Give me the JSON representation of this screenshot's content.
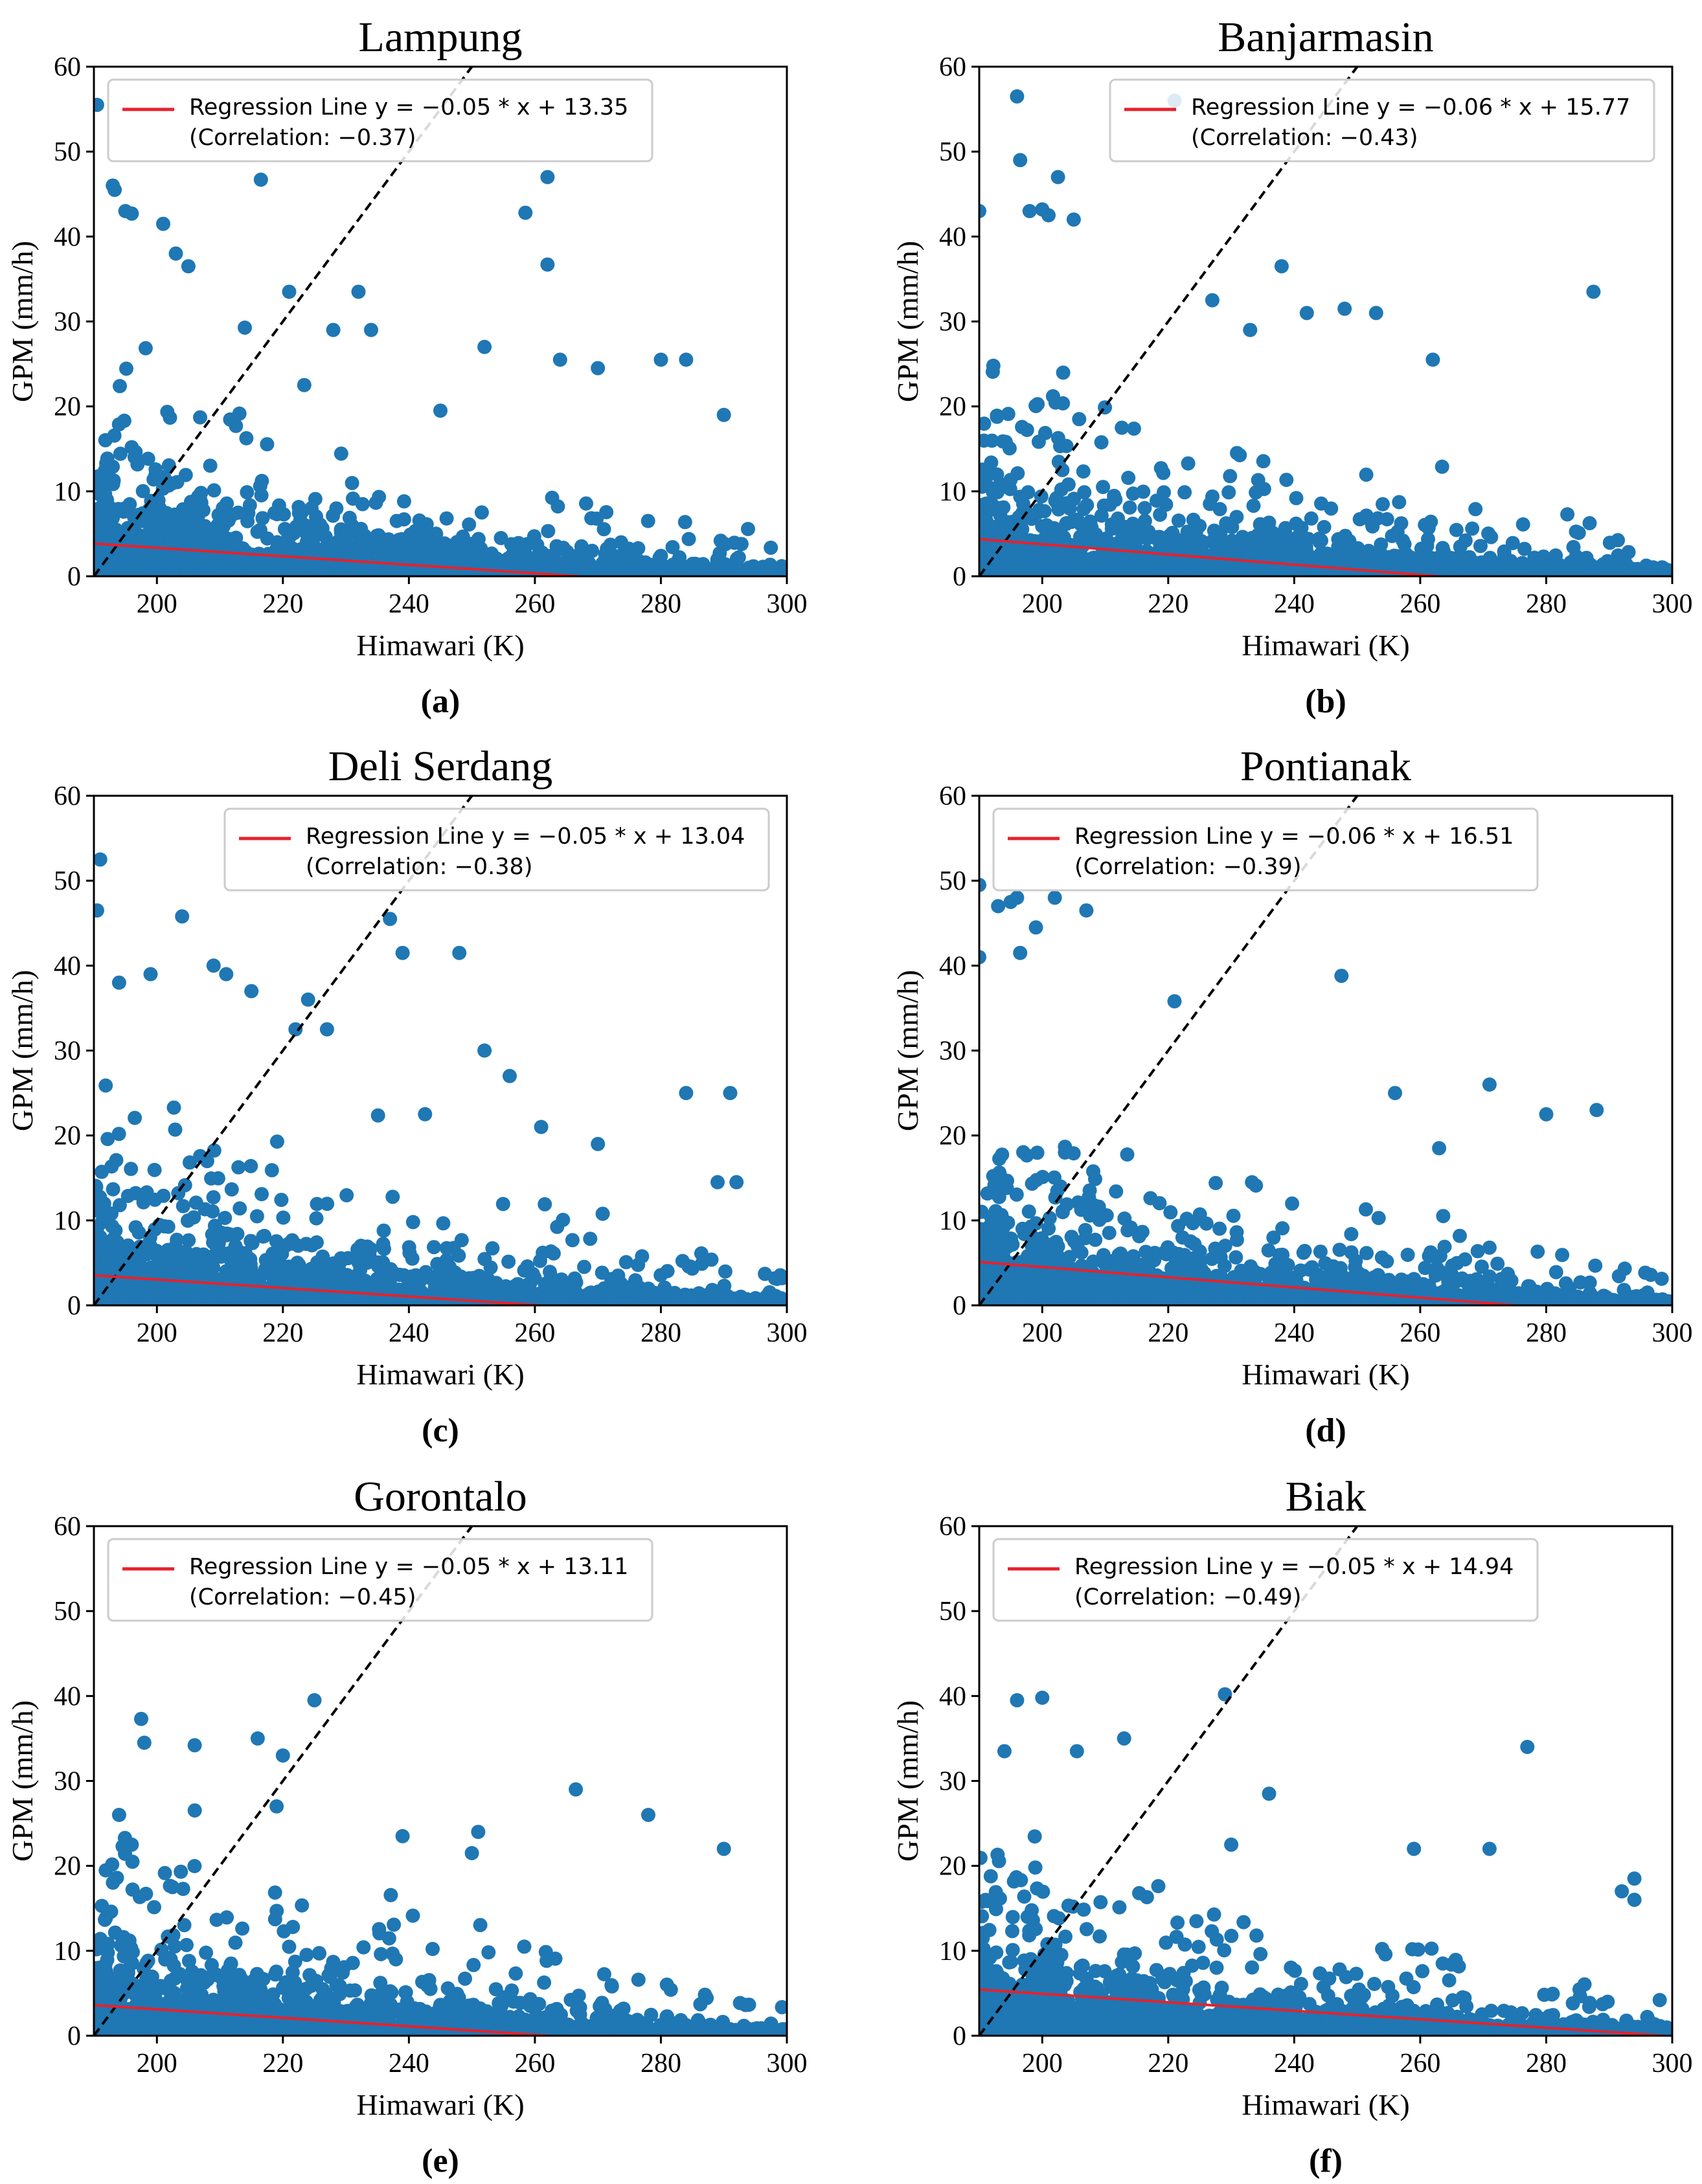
{
  "colors": {
    "points": "#1f77b4",
    "regression": "#e8212b",
    "identity": "#000000",
    "axes": "#000000"
  },
  "chart_data": [
    {
      "panel_label": "(a)",
      "type": "scatter",
      "title": "Lampung",
      "xlabel": "Himawari (K)",
      "ylabel": "GPM (mm/h)",
      "xlim": [
        190,
        300
      ],
      "ylim": [
        0,
        60
      ],
      "xticks": [
        "200",
        "220",
        "240",
        "260",
        "280",
        "300"
      ],
      "yticks": [
        "0",
        "10",
        "20",
        "30",
        "40",
        "50",
        "60"
      ],
      "regression": {
        "slope": -0.05,
        "intercept": 13.35,
        "correlation": -0.37,
        "line1": "Regression Line y = −0.05 * x + 13.35",
        "line2": "(Correlation: −0.37)"
      },
      "legend_position": "upper-left",
      "identity_line": true,
      "grid": false,
      "highlights": [
        [
          190.5,
          55.5
        ],
        [
          193,
          46
        ],
        [
          193.3,
          45.5
        ],
        [
          195,
          43
        ],
        [
          196,
          42.7
        ],
        [
          201,
          41.5
        ],
        [
          216.5,
          46.7
        ],
        [
          262,
          47
        ],
        [
          258.5,
          42.8
        ],
        [
          262,
          36.7
        ],
        [
          232,
          33.5
        ],
        [
          221,
          33.5
        ],
        [
          203,
          38
        ],
        [
          205,
          36.5
        ],
        [
          252,
          27
        ],
        [
          264,
          25.5
        ],
        [
          270,
          24.5
        ],
        [
          280,
          25.5
        ],
        [
          284,
          25.5
        ],
        [
          290,
          19
        ],
        [
          245,
          19.5
        ],
        [
          228,
          29
        ],
        [
          234,
          29
        ]
      ],
      "seed": 11
    },
    {
      "panel_label": "(b)",
      "type": "scatter",
      "title": "Banjarmasin",
      "xlabel": "Himawari (K)",
      "ylabel": "GPM (mm/h)",
      "xlim": [
        190,
        300
      ],
      "ylim": [
        0,
        60
      ],
      "xticks": [
        "200",
        "220",
        "240",
        "260",
        "280",
        "300"
      ],
      "yticks": [
        "0",
        "10",
        "20",
        "30",
        "40",
        "50",
        "60"
      ],
      "regression": {
        "slope": -0.06,
        "intercept": 15.77,
        "correlation": -0.43,
        "line1": "Regression Line y = −0.06 * x + 15.77",
        "line2": "(Correlation: −0.43)"
      },
      "legend_position": "upper-right",
      "identity_line": true,
      "grid": false,
      "highlights": [
        [
          196,
          56.5
        ],
        [
          196.5,
          49
        ],
        [
          190,
          43
        ],
        [
          198,
          43
        ],
        [
          200,
          43.2
        ],
        [
          201,
          42.5
        ],
        [
          205,
          42
        ],
        [
          202.5,
          47
        ],
        [
          221,
          56
        ],
        [
          238,
          36.5
        ],
        [
          287.5,
          33.5
        ],
        [
          242,
          31
        ],
        [
          248,
          31.5
        ],
        [
          253,
          31
        ],
        [
          262,
          25.5
        ],
        [
          227,
          32.5
        ],
        [
          233,
          29
        ]
      ],
      "seed": 23
    },
    {
      "panel_label": "(c)",
      "type": "scatter",
      "title": "Deli Serdang",
      "xlabel": "Himawari (K)",
      "ylabel": "GPM (mm/h)",
      "xlim": [
        190,
        300
      ],
      "ylim": [
        0,
        60
      ],
      "xticks": [
        "200",
        "220",
        "240",
        "260",
        "280",
        "300"
      ],
      "yticks": [
        "0",
        "10",
        "20",
        "30",
        "40",
        "50",
        "60"
      ],
      "regression": {
        "slope": -0.05,
        "intercept": 13.04,
        "correlation": -0.38,
        "line1": "Regression Line y = −0.05 * x + 13.04",
        "line2": "(Correlation: −0.38)"
      },
      "legend_position": "upper-right",
      "identity_line": true,
      "grid": false,
      "highlights": [
        [
          191,
          52.5
        ],
        [
          190.5,
          46.5
        ],
        [
          194,
          38
        ],
        [
          199,
          39
        ],
        [
          204,
          45.8
        ],
        [
          209,
          40
        ],
        [
          211,
          39
        ],
        [
          215,
          37
        ],
        [
          237,
          45.5
        ],
        [
          239,
          41.5
        ],
        [
          248,
          41.5
        ],
        [
          252,
          30
        ],
        [
          256,
          27
        ],
        [
          224,
          36
        ],
        [
          227,
          32.5
        ],
        [
          222,
          32.5
        ],
        [
          261,
          21
        ],
        [
          270,
          19
        ],
        [
          284,
          25
        ],
        [
          291,
          25
        ],
        [
          289,
          14.5
        ],
        [
          292,
          14.5
        ]
      ],
      "seed": 37
    },
    {
      "panel_label": "(d)",
      "type": "scatter",
      "title": "Pontianak",
      "xlabel": "Himawari (K)",
      "ylabel": "GPM (mm/h)",
      "xlim": [
        190,
        300
      ],
      "ylim": [
        0,
        60
      ],
      "xticks": [
        "200",
        "220",
        "240",
        "260",
        "280",
        "300"
      ],
      "yticks": [
        "0",
        "10",
        "20",
        "30",
        "40",
        "50",
        "60"
      ],
      "regression": {
        "slope": -0.06,
        "intercept": 16.51,
        "correlation": -0.39,
        "line1": "Regression Line y = −0.06 * x + 16.51",
        "line2": "(Correlation: −0.39)"
      },
      "legend_position": "upper-left",
      "identity_line": true,
      "grid": false,
      "highlights": [
        [
          190,
          49.5
        ],
        [
          193,
          47
        ],
        [
          195,
          47.5
        ],
        [
          196,
          48
        ],
        [
          199,
          44.5
        ],
        [
          202,
          48
        ],
        [
          207,
          46.5
        ],
        [
          190,
          41
        ],
        [
          196.5,
          41.5
        ],
        [
          221,
          35.8
        ],
        [
          247.5,
          38.8
        ],
        [
          271,
          26
        ],
        [
          280,
          22.5
        ],
        [
          288,
          23
        ],
        [
          256,
          25
        ],
        [
          263,
          18.5
        ]
      ],
      "seed": 41
    },
    {
      "panel_label": "(e)",
      "type": "scatter",
      "title": "Gorontalo",
      "xlabel": "Himawari (K)",
      "ylabel": "GPM (mm/h)",
      "xlim": [
        190,
        300
      ],
      "ylim": [
        0,
        60
      ],
      "xticks": [
        "200",
        "220",
        "240",
        "260",
        "280",
        "300"
      ],
      "yticks": [
        "0",
        "10",
        "20",
        "30",
        "40",
        "50",
        "60"
      ],
      "regression": {
        "slope": -0.05,
        "intercept": 13.11,
        "correlation": -0.45,
        "line1": "Regression Line y = −0.05 * x + 13.11",
        "line2": "(Correlation: −0.45)"
      },
      "legend_position": "upper-left",
      "identity_line": true,
      "grid": false,
      "highlights": [
        [
          197.5,
          37.3
        ],
        [
          198,
          34.5
        ],
        [
          206,
          34.2
        ],
        [
          216,
          35
        ],
        [
          220,
          33
        ],
        [
          225,
          39.5
        ],
        [
          219,
          27
        ],
        [
          266.5,
          29
        ],
        [
          278,
          26
        ],
        [
          290,
          22
        ],
        [
          251,
          24
        ],
        [
          250,
          21.5
        ],
        [
          239,
          23.5
        ],
        [
          194,
          26
        ],
        [
          196,
          22.5
        ]
      ],
      "seed": 53
    },
    {
      "panel_label": "(f)",
      "type": "scatter",
      "title": "Biak",
      "xlabel": "Himawari (K)",
      "ylabel": "GPM (mm/h)",
      "xlim": [
        190,
        300
      ],
      "ylim": [
        0,
        60
      ],
      "xticks": [
        "200",
        "220",
        "240",
        "260",
        "280",
        "300"
      ],
      "yticks": [
        "0",
        "10",
        "20",
        "30",
        "40",
        "50",
        "60"
      ],
      "regression": {
        "slope": -0.05,
        "intercept": 14.94,
        "correlation": -0.49,
        "line1": "Regression Line y = −0.05 * x + 14.94",
        "line2": "(Correlation: −0.49)"
      },
      "legend_position": "upper-left",
      "identity_line": true,
      "grid": false,
      "highlights": [
        [
          196,
          39.5
        ],
        [
          200,
          39.8
        ],
        [
          205.5,
          33.5
        ],
        [
          213,
          35
        ],
        [
          229,
          40.2
        ],
        [
          236,
          28.5
        ],
        [
          230,
          22.5
        ],
        [
          259,
          22
        ],
        [
          271,
          22
        ],
        [
          277,
          34
        ],
        [
          294,
          18.5
        ],
        [
          292,
          17
        ],
        [
          294,
          16
        ],
        [
          194,
          33.5
        ]
      ],
      "seed": 67
    }
  ]
}
